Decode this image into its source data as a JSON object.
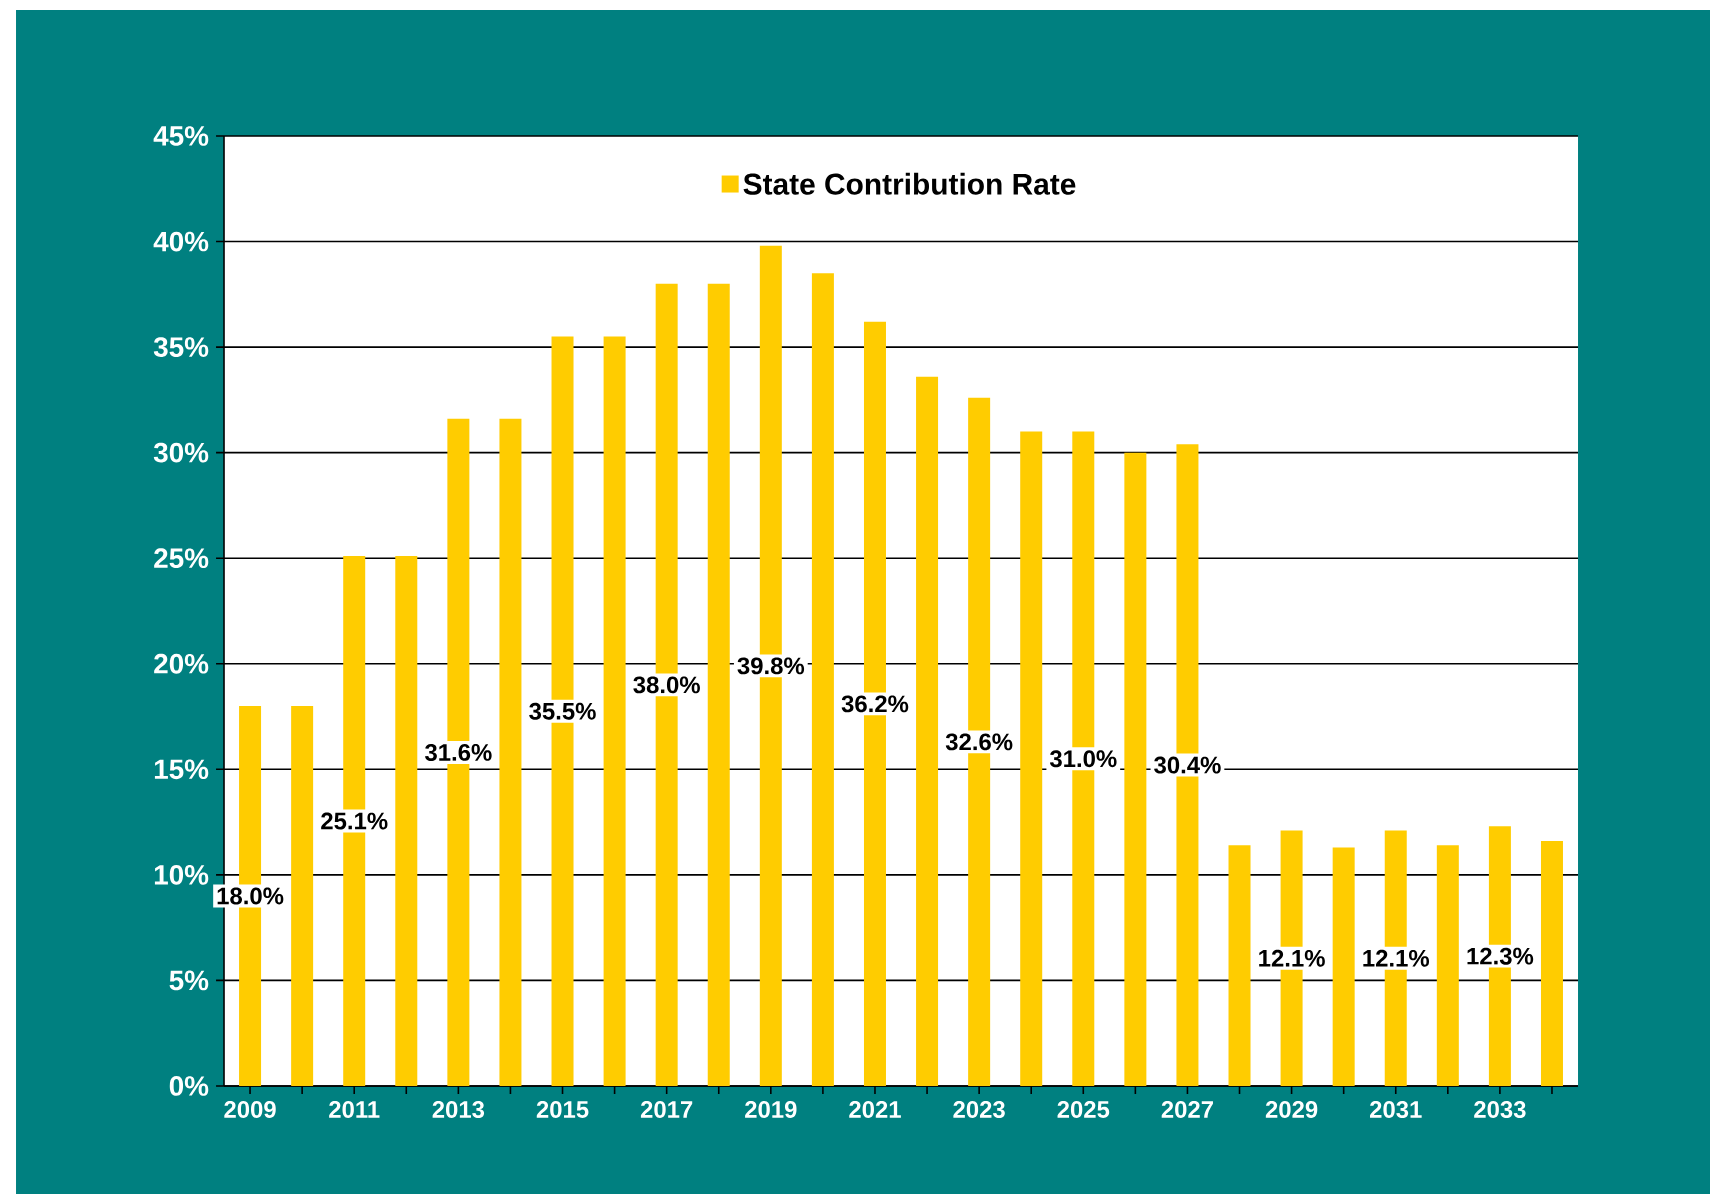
{
  "chart_data": {
    "type": "bar",
    "categories": [
      "2009",
      null,
      "2011",
      null,
      "2013",
      null,
      "2015",
      null,
      "2017",
      null,
      "2019",
      null,
      "2021",
      null,
      "2023",
      null,
      "2025",
      null,
      "2027",
      null,
      "2029",
      null,
      "2031",
      null,
      "2033",
      null
    ],
    "series": [
      {
        "name": "State Contribution Rate",
        "color": "#ffcc00",
        "values": [
          18.0,
          18.0,
          25.1,
          25.1,
          31.6,
          31.6,
          35.5,
          35.5,
          38.0,
          38.0,
          39.8,
          38.5,
          36.2,
          33.6,
          32.6,
          31.0,
          31.0,
          30.0,
          30.4,
          11.4,
          12.1,
          11.3,
          12.1,
          11.4,
          12.3,
          11.6
        ],
        "value_labels": [
          "18.0%",
          null,
          "25.1%",
          null,
          "31.6%",
          null,
          "35.5%",
          null,
          "38.0%",
          null,
          "39.8%",
          null,
          "36.2%",
          null,
          "32.6%",
          null,
          "31.0%",
          null,
          "30.4%",
          null,
          "12.1%",
          null,
          "12.1%",
          null,
          "12.3%",
          null
        ]
      }
    ],
    "ylim": [
      0,
      45
    ],
    "yticks": [
      {
        "value": 0,
        "label": "0%"
      },
      {
        "value": 5,
        "label": "5%"
      },
      {
        "value": 10,
        "label": "10%"
      },
      {
        "value": 15,
        "label": "15%"
      },
      {
        "value": 20,
        "label": "20%"
      },
      {
        "value": 25,
        "label": "25%"
      },
      {
        "value": 30,
        "label": "30%"
      },
      {
        "value": 35,
        "label": "35%"
      },
      {
        "value": 40,
        "label": "40%"
      },
      {
        "value": 45,
        "label": "45%"
      }
    ],
    "grid": "y",
    "legend": "top"
  }
}
